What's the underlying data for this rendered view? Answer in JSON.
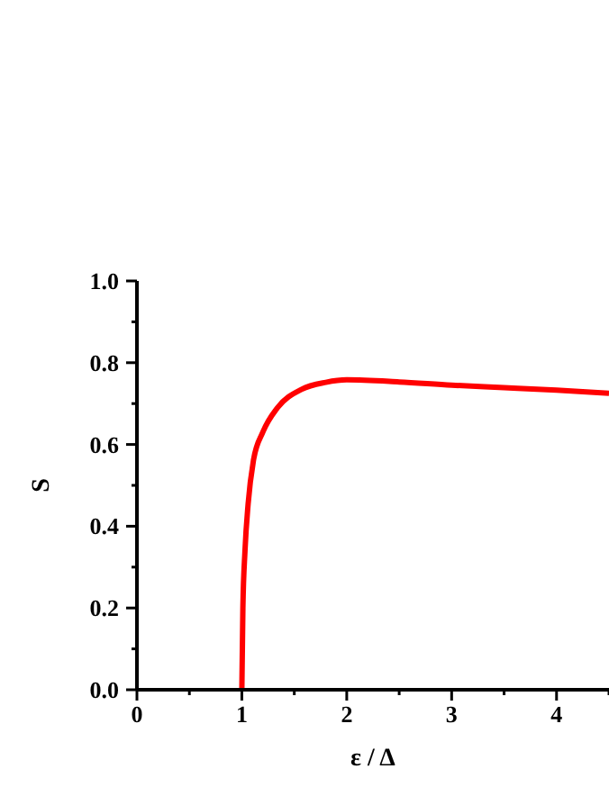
{
  "chart_data": {
    "type": "line",
    "xlabel": "ε / Δ",
    "ylabel": "S",
    "x": [
      1,
      1.01,
      1.03,
      1.06,
      1.11,
      1.2,
      1.34,
      1.57,
      1.8,
      2.0,
      2.5,
      3.0,
      3.5,
      4.0,
      4.5
    ],
    "series": [
      {
        "color": "#ff0000",
        "values": [
          0,
          0.2,
          0.34,
          0.455,
          0.56,
          0.63,
          0.69,
          0.735,
          0.752,
          0.758,
          0.753,
          0.745,
          0.739,
          0.733,
          0.725
        ]
      }
    ],
    "xlim": [
      0,
      4.5
    ],
    "xticks": [
      0,
      {
        "value": 0.5,
        "label": null
      },
      1,
      {
        "value": 1.5,
        "label": null
      },
      2,
      {
        "value": 2.5,
        "label": null
      },
      3,
      {
        "value": 3.5,
        "label": null
      },
      4,
      {
        "value": 4.5,
        "label": null
      }
    ],
    "ylim": [
      0,
      1
    ],
    "yticks": [
      {
        "value": 0,
        "label": "0.0"
      },
      {
        "value": 0.1,
        "label": null
      },
      {
        "value": 0.2,
        "label": "0.2"
      },
      {
        "value": 0.3,
        "label": null
      },
      {
        "value": 0.4,
        "label": "0.4"
      },
      {
        "value": 0.5,
        "label": null
      },
      {
        "value": 0.6,
        "label": "0.6"
      },
      {
        "value": 0.7,
        "label": null
      },
      {
        "value": 0.8,
        "label": "0.8"
      },
      {
        "value": 0.9,
        "label": null
      },
      {
        "value": 1,
        "label": "1.0"
      }
    ],
    "grid": false,
    "legend": false,
    "marker": "none",
    "line_style": "solid"
  }
}
